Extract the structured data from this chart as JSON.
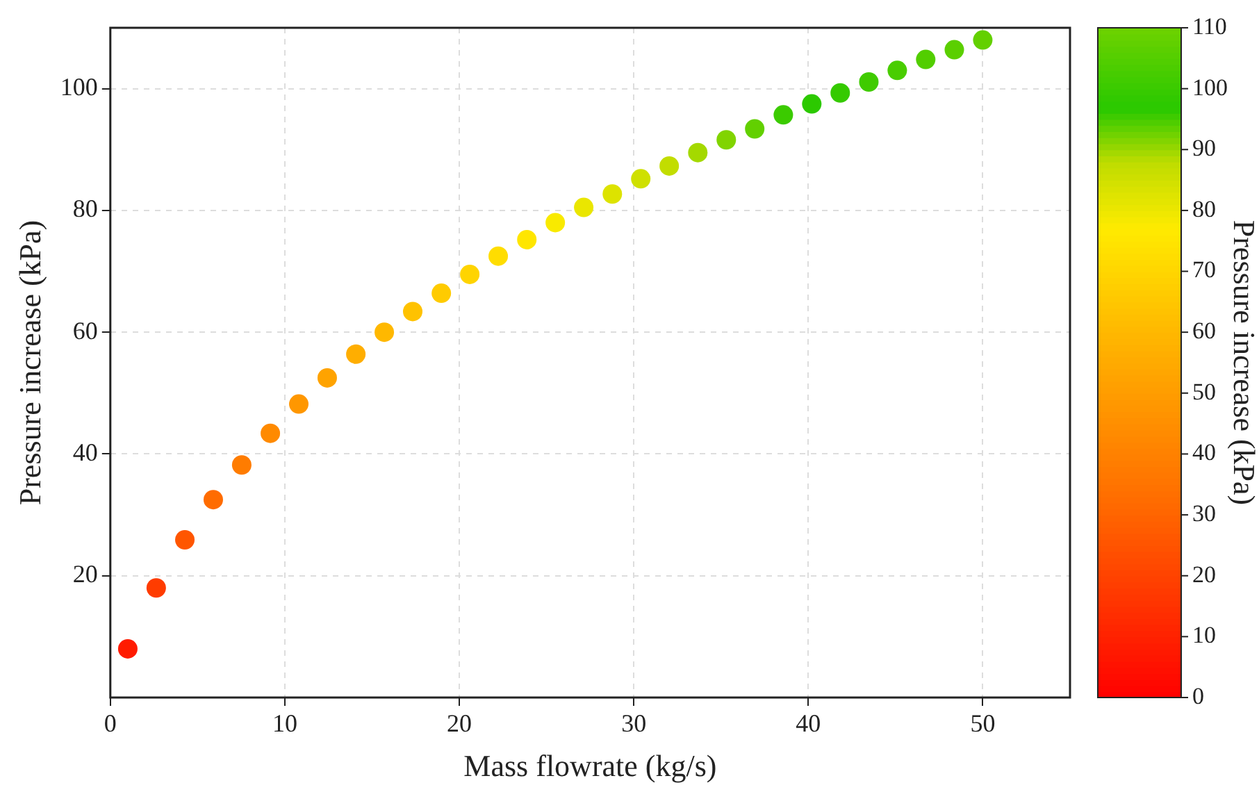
{
  "chart_data": {
    "type": "scatter",
    "xlabel": "Mass flowrate (kg/s)",
    "ylabel": "Pressure increase (kPa)",
    "clabel": "Pressure increase (kPa)",
    "x": [
      1,
      2.63,
      4.27,
      5.9,
      7.53,
      9.17,
      10.8,
      12.43,
      14.07,
      15.7,
      17.33,
      18.97,
      20.6,
      22.23,
      23.87,
      25.5,
      27.13,
      28.77,
      30.4,
      32.03,
      33.67,
      35.3,
      36.93,
      38.57,
      40.2,
      41.83,
      43.47,
      45.1,
      46.73,
      48.37,
      50
    ],
    "values": [
      8,
      18,
      25.9,
      32.5,
      38.2,
      43.4,
      48.2,
      52.5,
      56.4,
      60,
      63.4,
      66.4,
      69.5,
      72.5,
      75.2,
      78,
      80.5,
      82.7,
      85.2,
      87.3,
      89.5,
      91.6,
      93.4,
      95.7,
      97.5,
      99.3,
      101.1,
      103,
      104.8,
      106.4,
      108
    ],
    "cvalues": [
      8,
      18,
      25.9,
      32.5,
      38.2,
      43.4,
      48.2,
      52.5,
      56.4,
      60,
      63.4,
      66.4,
      69.5,
      72.5,
      75.2,
      78,
      80.5,
      82.7,
      85.2,
      87.3,
      89.5,
      91.6,
      93.4,
      95.7,
      97.5,
      99.3,
      101.1,
      103,
      104.8,
      106.4,
      108
    ],
    "xlim": [
      0,
      55
    ],
    "xticks": [
      0,
      10,
      20,
      30,
      40,
      50
    ],
    "ylim": [
      0,
      110
    ],
    "yticks": [
      20,
      40,
      60,
      80,
      100
    ],
    "clim": [
      0,
      110
    ],
    "cticks": [
      0,
      10,
      20,
      30,
      40,
      50,
      60,
      70,
      80,
      90,
      100,
      110
    ],
    "grid": true,
    "legend": false,
    "marker": "circle"
  }
}
